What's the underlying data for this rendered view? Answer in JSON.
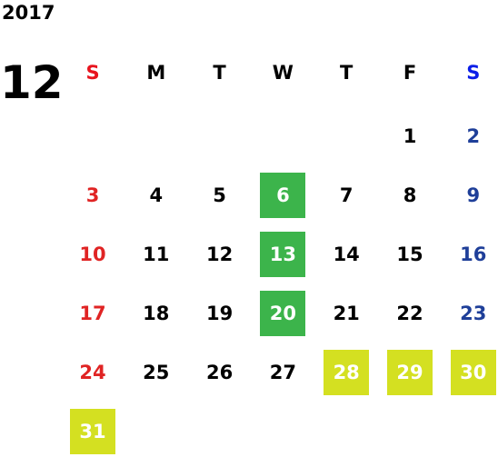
{
  "year": "2017",
  "month": "12",
  "weekdays": [
    "S",
    "M",
    "T",
    "W",
    "T",
    "F",
    "S"
  ],
  "weekday_colors": [
    "#e8141e",
    "#000000",
    "#000000",
    "#000000",
    "#000000",
    "#000000",
    "#0b1ee8"
  ],
  "day_colors": [
    "#e02424",
    "#000000",
    "#000000",
    "#000000",
    "#000000",
    "#000000",
    "#1f3f99"
  ],
  "weeks": [
    [
      null,
      null,
      null,
      null,
      null,
      1,
      2
    ],
    [
      3,
      4,
      5,
      {
        "day": 6,
        "fill": "#3cb44b"
      },
      7,
      8,
      9
    ],
    [
      10,
      11,
      12,
      {
        "day": 13,
        "fill": "#3cb44b"
      },
      14,
      15,
      16
    ],
    [
      17,
      18,
      19,
      {
        "day": 20,
        "fill": "#3cb44b"
      },
      21,
      22,
      23
    ],
    [
      24,
      25,
      26,
      27,
      {
        "day": 28,
        "fill": "#d4e021"
      },
      {
        "day": 29,
        "fill": "#d4e021"
      },
      {
        "day": 30,
        "fill": "#d4e021"
      }
    ],
    [
      {
        "day": 31,
        "fill": "#d4e021"
      },
      null,
      null,
      null,
      null,
      null,
      null
    ]
  ]
}
